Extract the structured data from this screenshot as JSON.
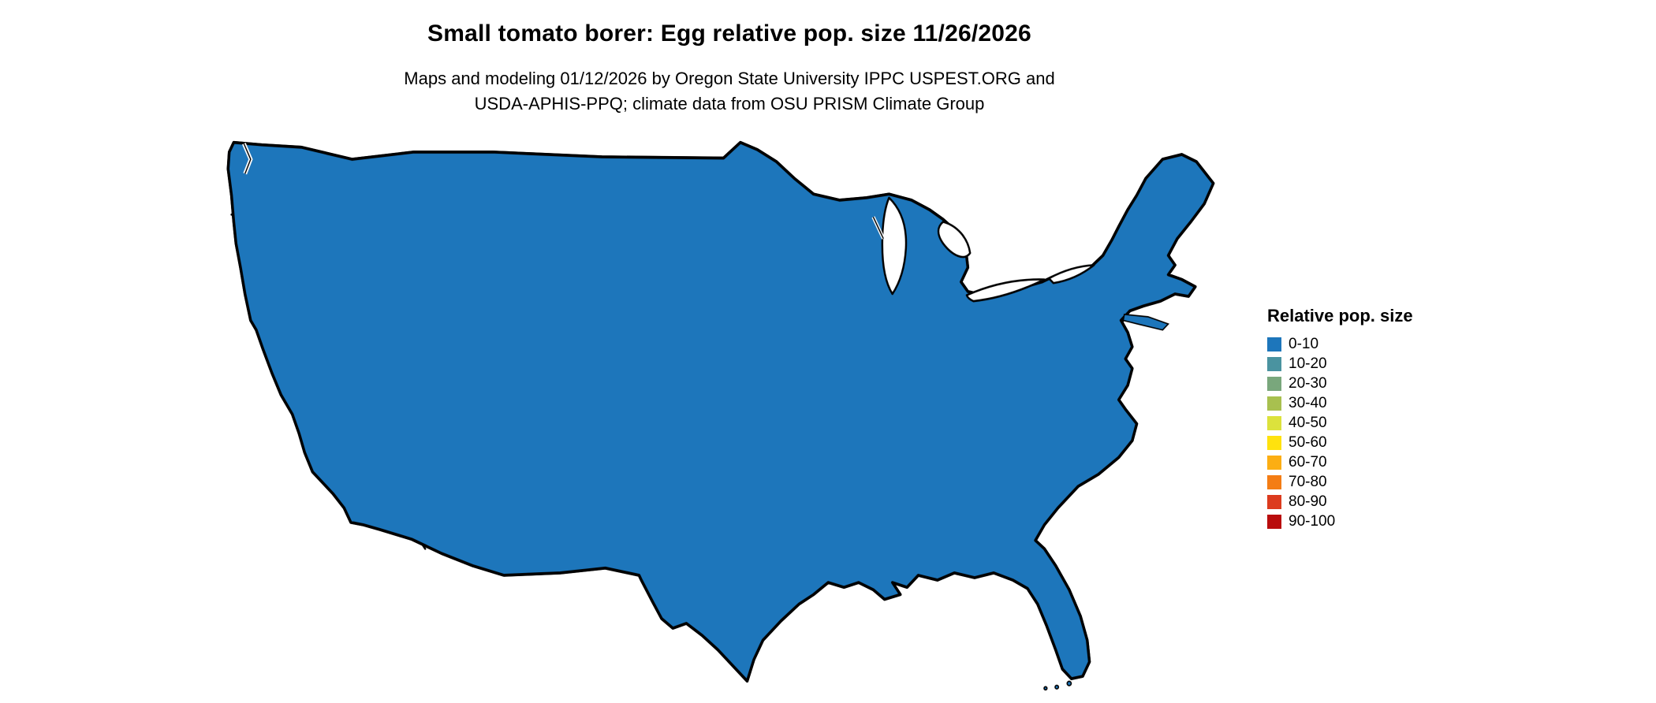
{
  "figure": {
    "title": "Small tomato borer: Egg relative pop. size 11/26/2026",
    "subtitle_line1": "Maps and modeling 01/12/2026 by Oregon State University IPPC USPEST.ORG and",
    "subtitle_line2": "USDA-APHIS-PPQ; climate data from OSU PRISM Climate Group"
  },
  "map": {
    "name": "contiguous-united-states-raster-map",
    "base_color": "#1d76bb",
    "border_color": "#000000"
  },
  "legend": {
    "title": "Relative pop. size",
    "items": [
      {
        "label": "0-10",
        "color": "#1d76bb"
      },
      {
        "label": "10-20",
        "color": "#4a93a0"
      },
      {
        "label": "20-30",
        "color": "#79a77c"
      },
      {
        "label": "30-40",
        "color": "#a8c04f"
      },
      {
        "label": "40-50",
        "color": "#dce23c"
      },
      {
        "label": "50-60",
        "color": "#ffe20e"
      },
      {
        "label": "60-70",
        "color": "#fcae13"
      },
      {
        "label": "70-80",
        "color": "#f47d14"
      },
      {
        "label": "80-90",
        "color": "#dc3b1e"
      },
      {
        "label": "90-100",
        "color": "#b90d0d"
      }
    ]
  }
}
